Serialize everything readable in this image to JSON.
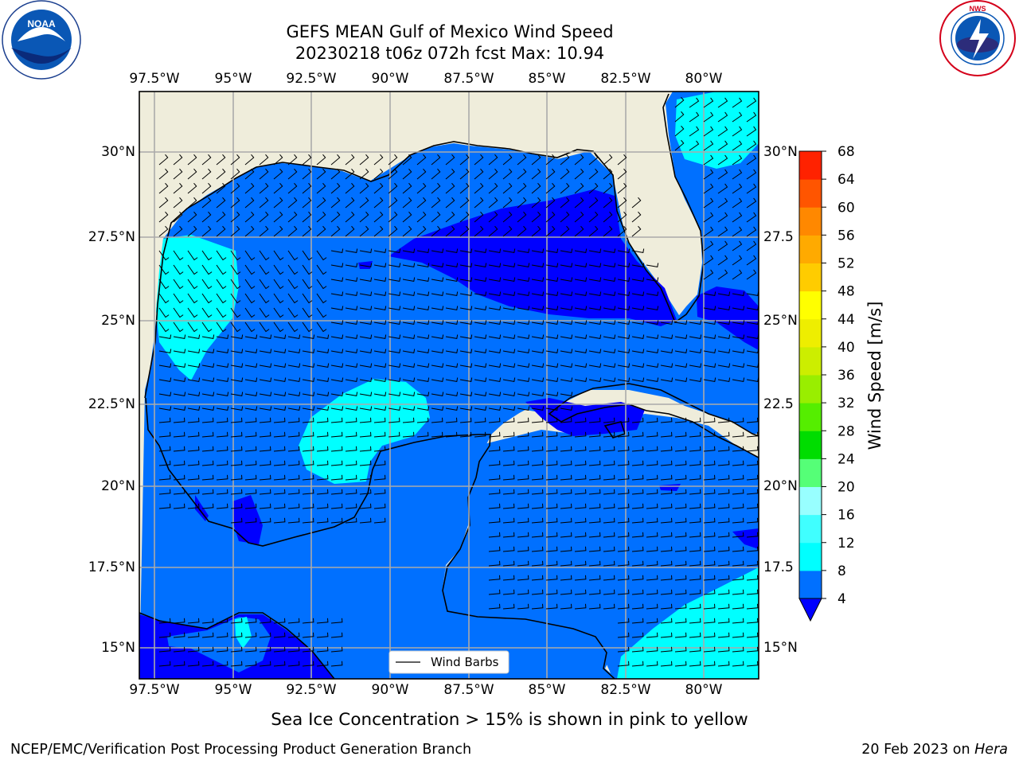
{
  "title": {
    "line1": "GEFS MEAN Gulf of Mexico Wind Speed",
    "line2": "20230218 t06z 072h fcst   Max: 10.94"
  },
  "map": {
    "lon_ticks": [
      "97.5°W",
      "95°W",
      "92.5°W",
      "90°W",
      "87.5°W",
      "85°W",
      "82.5°W",
      "80°W"
    ],
    "lat_ticks_left": [
      "30°N",
      "27.5°N",
      "25°N",
      "22.5°N",
      "20°N",
      "17.5°N",
      "15°N"
    ],
    "lat_ticks_right": [
      "30°N",
      "27.5",
      "25°N",
      "22.5",
      "20°N",
      "17.5",
      "15°N"
    ],
    "legend_label": "Wind Barbs"
  },
  "colorbar": {
    "label": "Wind Speed [m/s]",
    "levels": [
      "4",
      "8",
      "12",
      "16",
      "20",
      "24",
      "28",
      "32",
      "36",
      "40",
      "44",
      "48",
      "52",
      "56",
      "60",
      "64",
      "68"
    ],
    "colors": [
      "#0070ff",
      "#00ffff",
      "#40ffff",
      "#98ffff",
      "#55ff77",
      "#00dd00",
      "#55ee00",
      "#99ee00",
      "#ccee00",
      "#eeee00",
      "#ffff00",
      "#ffcc00",
      "#ffaa00",
      "#ff8800",
      "#ff5500",
      "#ff2200",
      "#ff0000"
    ],
    "under_color": "#0000ff"
  },
  "logos": {
    "noaa_text": "NOAA",
    "noaa_ring": "NATIONAL OCEANIC AND ATMOSPHERIC ADMINISTRATION · U.S. DEPARTMENT OF COMMERCE",
    "nws_ring": "NATIONAL WEATHER SERVICE"
  },
  "caption": "Sea Ice Concentration > 15% is shown in pink to yellow",
  "footer": {
    "left": "NCEP/EMC/Verification Post Processing Product Generation Branch",
    "right_prefix": "20 Feb 2023 on ",
    "right_machine": "Hera"
  }
}
